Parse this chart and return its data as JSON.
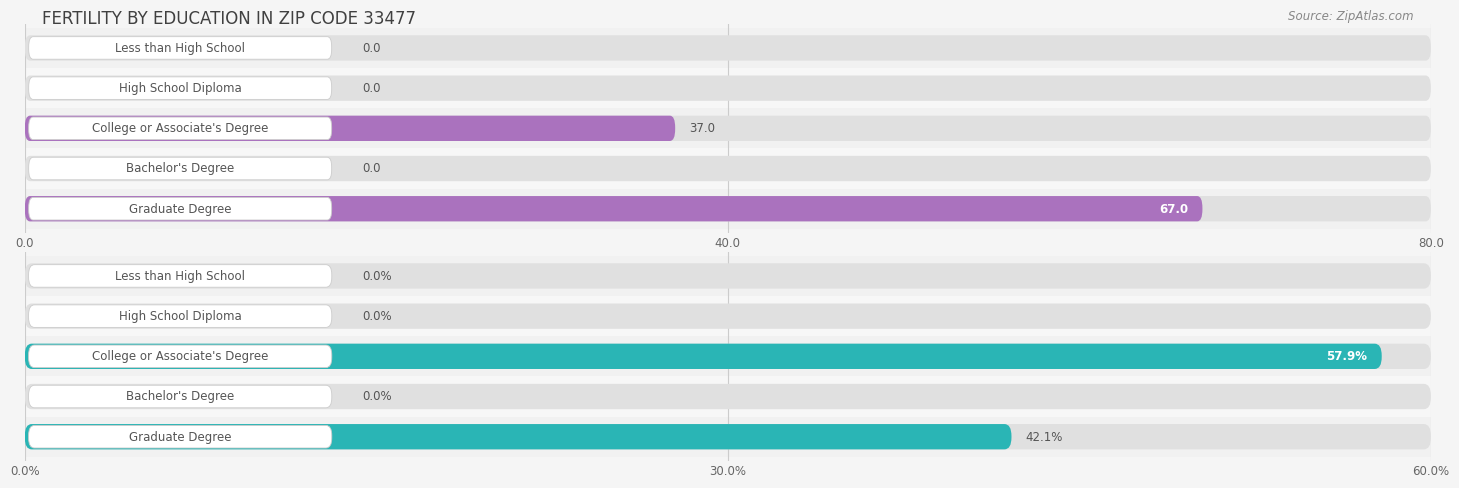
{
  "title": "FERTILITY BY EDUCATION IN ZIP CODE 33477",
  "source": "Source: ZipAtlas.com",
  "top_chart": {
    "categories": [
      "Less than High School",
      "High School Diploma",
      "College or Associate's Degree",
      "Bachelor's Degree",
      "Graduate Degree"
    ],
    "values": [
      0.0,
      0.0,
      37.0,
      0.0,
      67.0
    ],
    "xlim": [
      0,
      80
    ],
    "xticks": [
      0.0,
      40.0,
      80.0
    ],
    "bar_color_base": "#cda8d8",
    "bar_color_highlight": "#aa72be",
    "highlight_indices": [
      2,
      4
    ]
  },
  "bottom_chart": {
    "categories": [
      "Less than High School",
      "High School Diploma",
      "College or Associate's Degree",
      "Bachelor's Degree",
      "Graduate Degree"
    ],
    "values": [
      0.0,
      0.0,
      57.9,
      0.0,
      42.1
    ],
    "xlim": [
      0,
      60
    ],
    "xticks": [
      0.0,
      30.0,
      60.0
    ],
    "bar_color_base": "#7fd4d4",
    "bar_color_highlight": "#2ab5b5",
    "highlight_indices": [
      2,
      4
    ]
  },
  "bg_color": "#f5f5f5",
  "row_bg_even": "#efefef",
  "row_bg_odd": "#fafafa",
  "bar_bg_color": "#e0e0e0",
  "label_box_color": "#ffffff",
  "label_box_edge": "#cccccc",
  "label_color": "#555555",
  "title_color": "#404040",
  "source_color": "#888888",
  "grid_color": "#cccccc",
  "bar_height": 0.62,
  "label_fontsize": 8.5,
  "title_fontsize": 12,
  "value_fontsize": 8.5,
  "tick_fontsize": 8.5
}
